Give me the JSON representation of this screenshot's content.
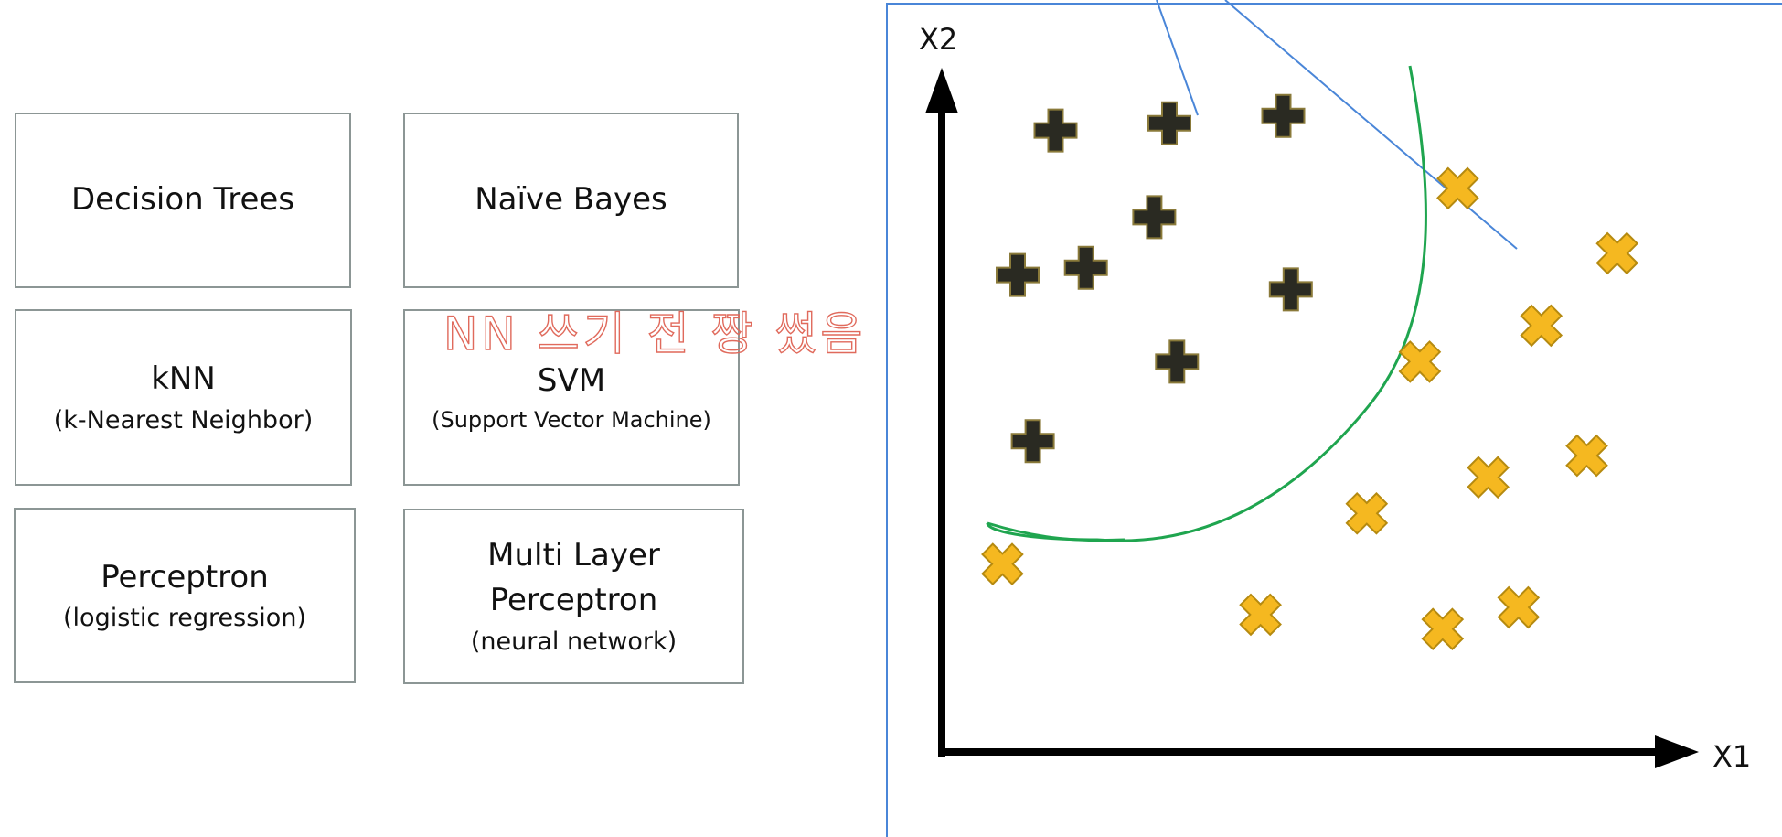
{
  "algorithms": [
    {
      "id": "dt",
      "main": "Decision Trees",
      "sub": ""
    },
    {
      "id": "nb",
      "main": "Naïve Bayes",
      "sub": ""
    },
    {
      "id": "knn",
      "main": "kNN",
      "sub": "(k-Nearest Neighbor)"
    },
    {
      "id": "svm",
      "main": "SVM",
      "sub": "(Support Vector Machine)"
    },
    {
      "id": "per",
      "main": "Perceptron",
      "sub": "(logistic regression)"
    },
    {
      "id": "mlp",
      "main": "Multi Layer Perceptron",
      "sub": "(neural network)"
    }
  ],
  "annotation": {
    "text": "NN 쓰기 전 짱 썼음",
    "color": "#e06a5c"
  },
  "chart_data": {
    "type": "scatter",
    "xlabel": "X1",
    "ylabel": "X2",
    "series": [
      {
        "name": "",
        "marker": "plus",
        "color": "#2a2a22",
        "points": [
          [
            1.5,
            8.6
          ],
          [
            3.0,
            8.7
          ],
          [
            4.5,
            8.8
          ],
          [
            2.8,
            7.4
          ],
          [
            1.0,
            6.6
          ],
          [
            1.9,
            6.7
          ],
          [
            4.6,
            6.4
          ],
          [
            3.1,
            5.4
          ],
          [
            1.2,
            4.3
          ]
        ]
      },
      {
        "name": "",
        "marker": "cross",
        "color": "#f5b820",
        "points": [
          [
            6.8,
            7.8
          ],
          [
            8.9,
            6.9
          ],
          [
            7.9,
            5.9
          ],
          [
            6.3,
            5.4
          ],
          [
            7.2,
            3.8
          ],
          [
            8.5,
            4.1
          ],
          [
            5.6,
            3.3
          ],
          [
            0.8,
            2.6
          ],
          [
            4.2,
            1.9
          ],
          [
            6.6,
            1.7
          ],
          [
            7.6,
            2.0
          ]
        ]
      }
    ],
    "decision_boundary_color": "#1fa54f",
    "frame_color": "#4a86d8"
  }
}
